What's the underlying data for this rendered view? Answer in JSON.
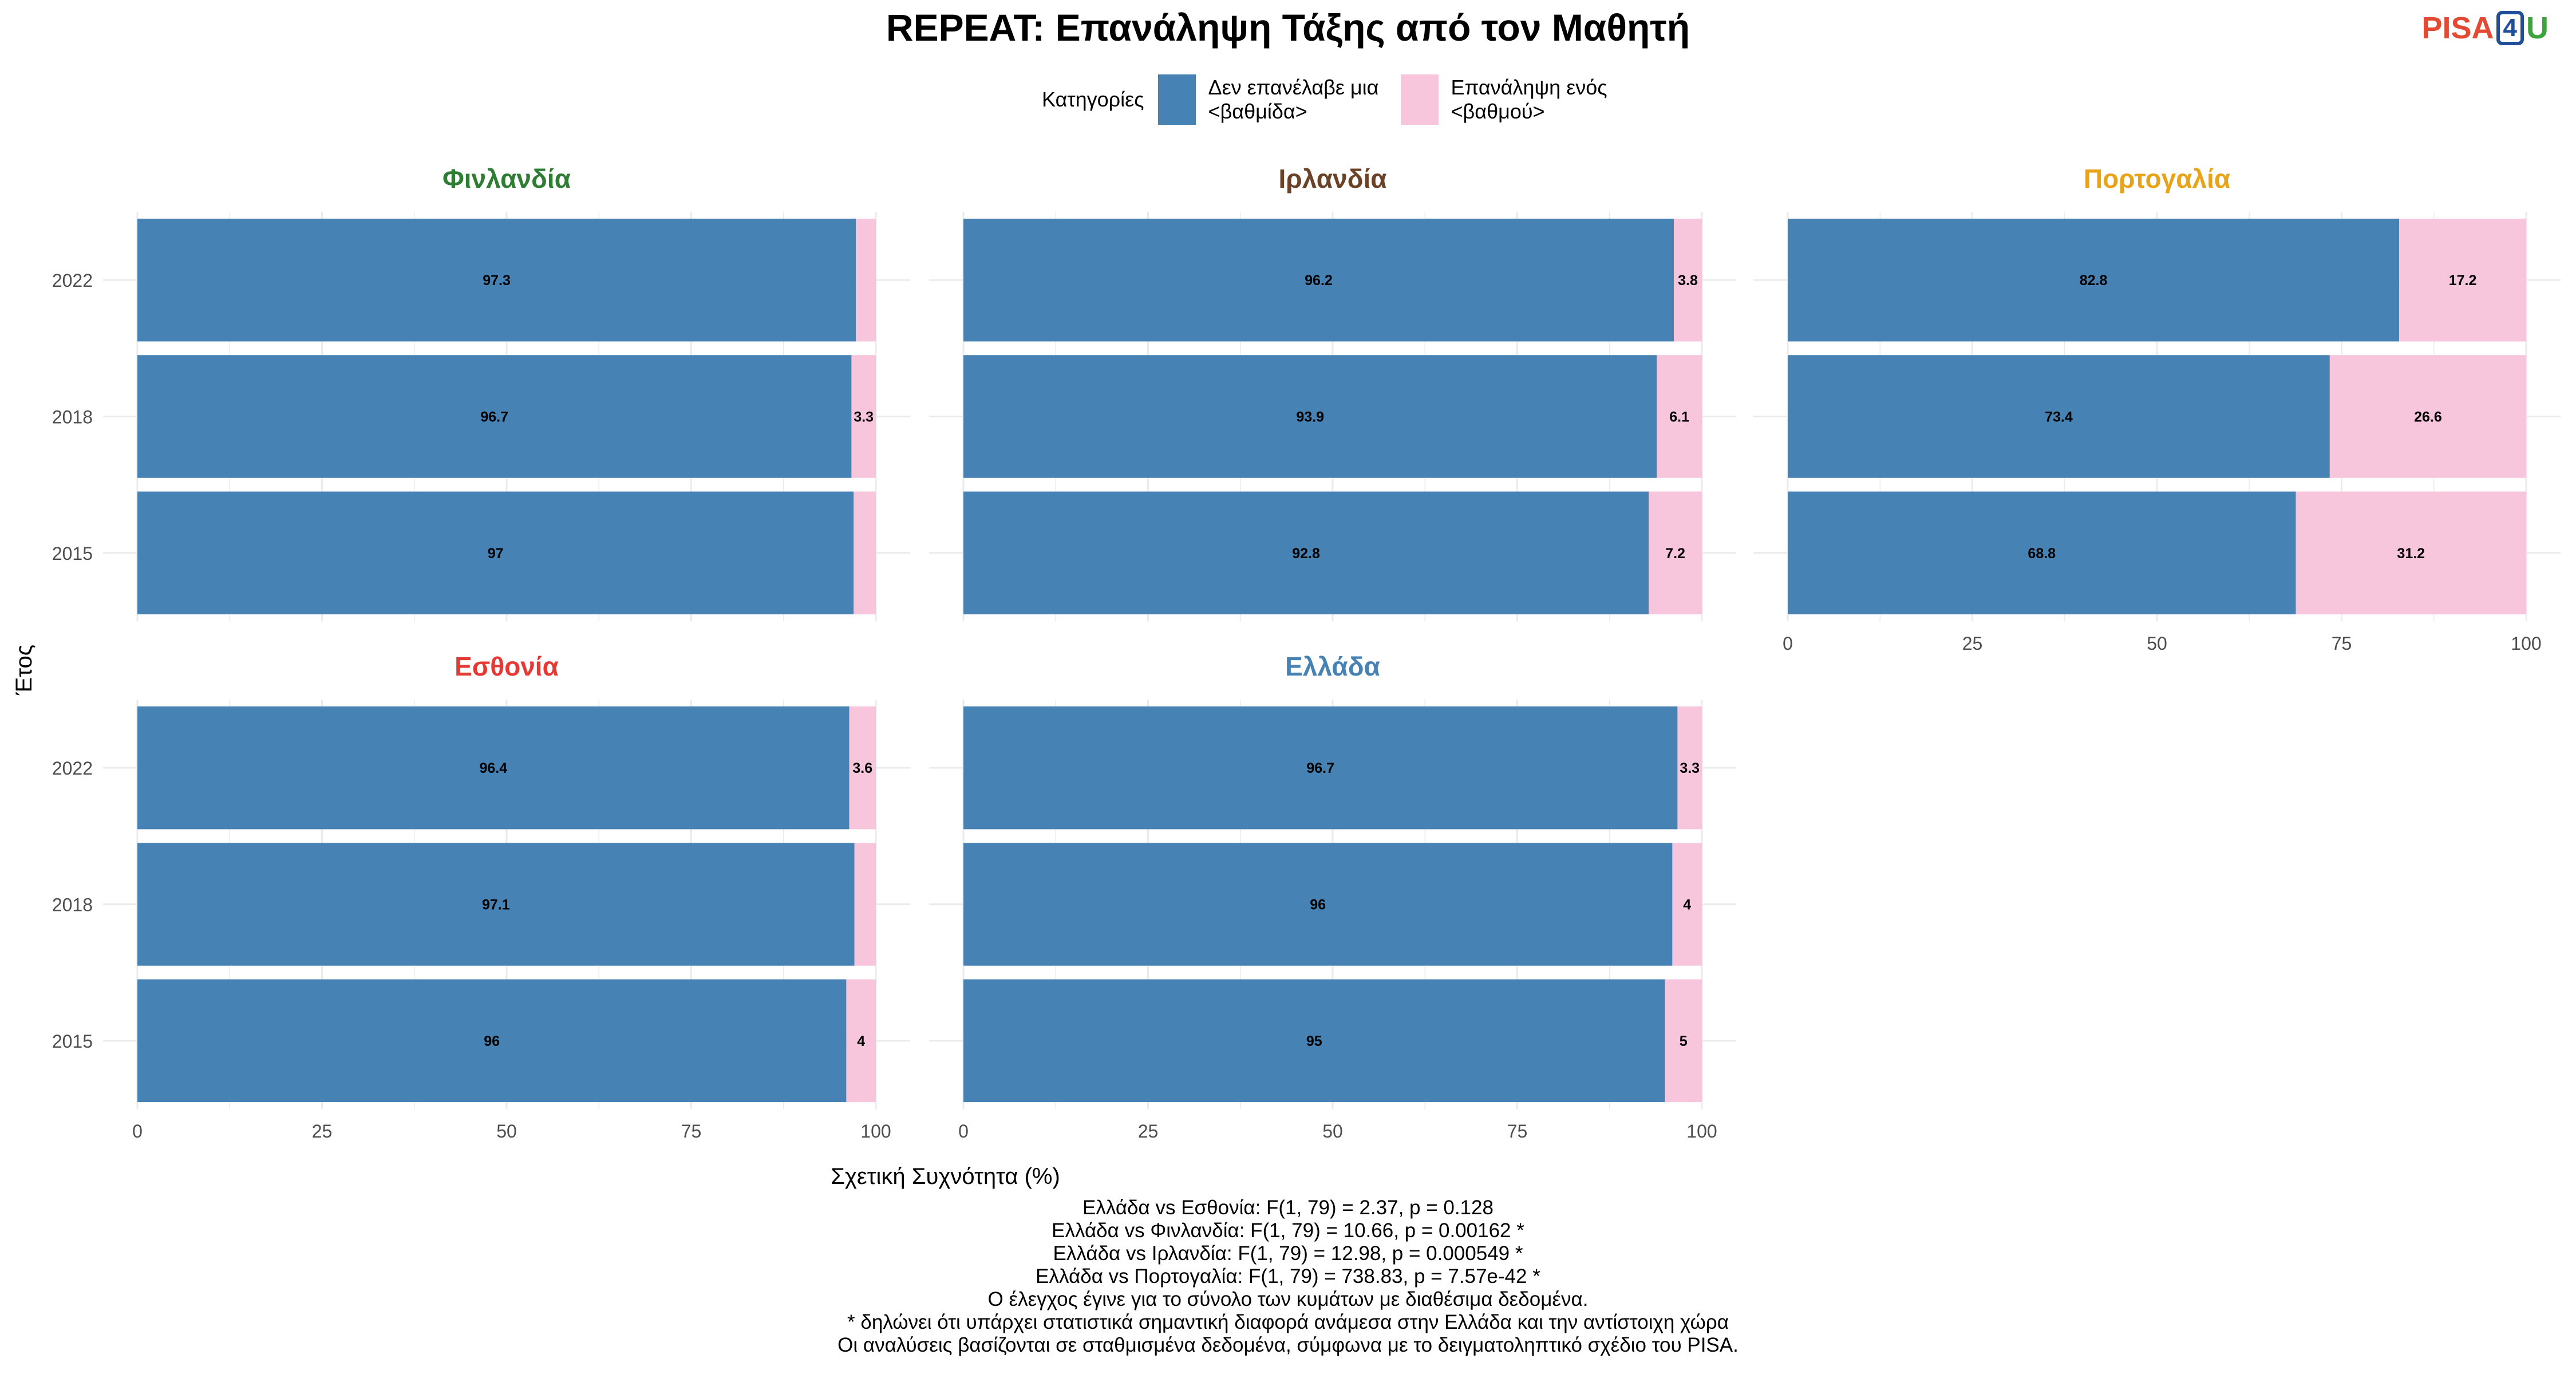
{
  "title": "REPEAT: Επανάληψη Τάξης από τον Μαθητή",
  "logo": {
    "part1": "PISA",
    "part2": "4",
    "part3": "U"
  },
  "legend": {
    "title": "Κατηγορίες",
    "items": [
      {
        "label_line1": "Δεν επανέλαβε μια",
        "label_line2": "<βαθμίδα>",
        "color": "#4682b4"
      },
      {
        "label_line1": "Επανάληψη ενός",
        "label_line2": "<βαθμού>",
        "color": "#f7c6dc"
      }
    ]
  },
  "chart_data": {
    "type": "bar",
    "orientation": "horizontal",
    "stacked": true,
    "xlabel": "Σχετική Συχνότητα (%)",
    "ylabel": "Έτος",
    "xlim": [
      0,
      100
    ],
    "xticks": [
      0,
      25,
      50,
      75,
      100
    ],
    "categories": [
      "2022",
      "2018",
      "2015"
    ],
    "series_names": [
      "Δεν επανέλαβε μια <βαθμίδα>",
      "Επανάληψη ενός <βαθμού>"
    ],
    "colors": [
      "#4682b4",
      "#f7c6dc"
    ],
    "grid": true,
    "panels": [
      {
        "name": "Φινλανδία",
        "title_color": "#2e7d32",
        "series": [
          {
            "name": "Δεν επανέλαβε μια <βαθμίδα>",
            "values": [
              97.3,
              96.7,
              97
            ],
            "labels": [
              "97.3",
              "96.7",
              "97"
            ]
          },
          {
            "name": "Επανάληψη ενός <βαθμού>",
            "values": [
              2.7,
              3.3,
              3
            ],
            "labels": [
              "",
              "3.3",
              ""
            ]
          }
        ]
      },
      {
        "name": "Ιρλανδία",
        "title_color": "#6b4226",
        "series": [
          {
            "name": "Δεν επανέλαβε μια <βαθμίδα>",
            "values": [
              96.2,
              93.9,
              92.8
            ],
            "labels": [
              "96.2",
              "93.9",
              "92.8"
            ]
          },
          {
            "name": "Επανάληψη ενός <βαθμού>",
            "values": [
              3.8,
              6.1,
              7.2
            ],
            "labels": [
              "3.8",
              "6.1",
              "7.2"
            ]
          }
        ]
      },
      {
        "name": "Πορτογαλία",
        "title_color": "#e8a317",
        "series": [
          {
            "name": "Δεν επανέλαβε μια <βαθμίδα>",
            "values": [
              82.8,
              73.4,
              68.8
            ],
            "labels": [
              "82.8",
              "73.4",
              "68.8"
            ]
          },
          {
            "name": "Επανάληψη ενός <βαθμού>",
            "values": [
              17.2,
              26.6,
              31.2
            ],
            "labels": [
              "17.2",
              "26.6",
              "31.2"
            ]
          }
        ]
      },
      {
        "name": "Εσθονία",
        "title_color": "#e53935",
        "series": [
          {
            "name": "Δεν επανέλαβε μια <βαθμίδα>",
            "values": [
              96.4,
              97.1,
              96
            ],
            "labels": [
              "96.4",
              "97.1",
              "96"
            ]
          },
          {
            "name": "Επανάληψη ενός <βαθμού>",
            "values": [
              3.6,
              2.9,
              4
            ],
            "labels": [
              "3.6",
              "",
              "4"
            ]
          }
        ]
      },
      {
        "name": "Ελλάδα",
        "title_color": "#4682b4",
        "series": [
          {
            "name": "Δεν επανέλαβε μια <βαθμίδα>",
            "values": [
              96.7,
              96,
              95
            ],
            "labels": [
              "96.7",
              "96",
              "95"
            ]
          },
          {
            "name": "Επανάληψη ενός <βαθμού>",
            "values": [
              3.3,
              4,
              5
            ],
            "labels": [
              "3.3",
              "4",
              "5"
            ]
          }
        ]
      }
    ]
  },
  "footer": {
    "lines": [
      "Ελλάδα vs Εσθονία: F(1, 79) = 2.37, p = 0.128",
      "Ελλάδα vs Φινλανδία: F(1, 79) = 10.66, p = 0.00162 *",
      "Ελλάδα vs Ιρλανδία: F(1, 79) = 12.98, p = 0.000549 *",
      "Ελλάδα vs Πορτογαλία: F(1, 79) = 738.83, p = 7.57e-42 *",
      "Ο έλεγχος έγινε για το σύνολο των κυμάτων με διαθέσιμα δεδομένα.",
      "* δηλώνει ότι υπάρχει στατιστικά σημαντική διαφορά ανάμεσα στην Ελλάδα και την αντίστοιχη χώρα",
      "Οι αναλύσεις βασίζονται σε σταθμισμένα δεδομένα, σύμφωνα με το δειγματοληπτικό σχέδιο του PISA."
    ]
  }
}
